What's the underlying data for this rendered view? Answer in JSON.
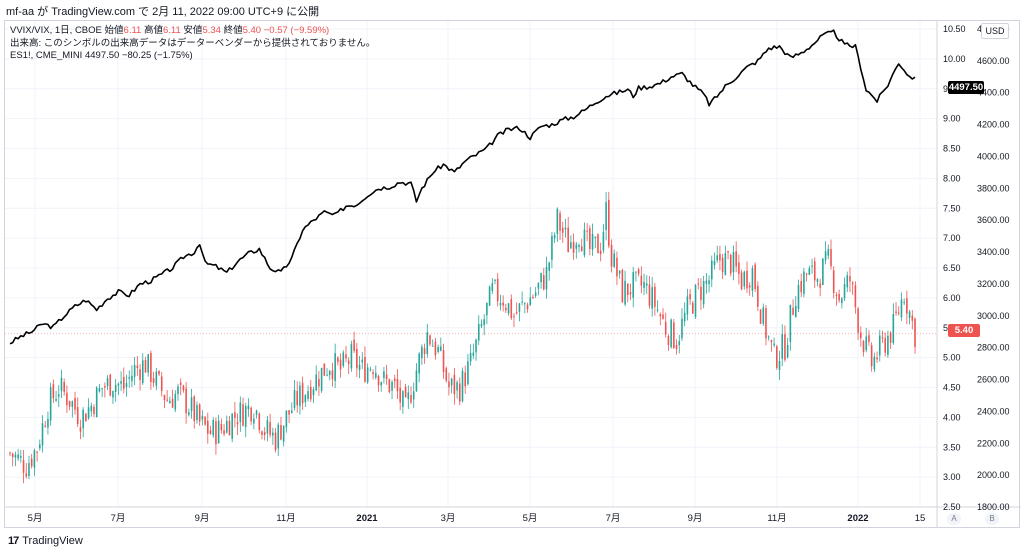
{
  "header": {
    "title": "mf-aa が TradingView.com で 2月 11, 2022 09:00 UTC+9 に公開"
  },
  "legend": {
    "line1_prefix": "VVIX/VIX, 1日, CBOE",
    "open_label": "始値",
    "open_value": "6.11",
    "high_label": "高値",
    "high_value": "6.11",
    "low_label": "安値",
    "low_value": "5.34",
    "close_label": "終値",
    "close_value": "5.40",
    "change": "−0.57 (−9.59%)",
    "line2": "出来高: このシンボルの出来高データはデーターベンダーから提供されておりません。",
    "line3_symbol": "ES1!, CME_MINI",
    "line3_value": "4497.50",
    "line3_change": "−80.25 (−1.75%)"
  },
  "currency_label": "USD",
  "price_tags": {
    "es": "4497.50",
    "ratio": "5.40"
  },
  "axis_buttons": {
    "auto": "A",
    "log": "B"
  },
  "footer": {
    "brand": "TradingView"
  },
  "colors": {
    "up": "#26a69a",
    "down": "#ef5350",
    "line": "#000000",
    "grid": "#f0f3fa"
  },
  "chart_data": {
    "type": "line",
    "title": "VVIX/VIX, 1日, CBOE",
    "x_tick_labels": [
      "5月",
      "7月",
      "9月",
      "11月",
      "2021",
      "3月",
      "5月",
      "7月",
      "9月",
      "11月",
      "2022",
      "15"
    ],
    "y_left_ticks_ratio": [
      "10.50",
      "10.00",
      "9.50",
      "9.00",
      "8.50",
      "8.00",
      "7.50",
      "7.00",
      "6.50",
      "6.00",
      "5.50",
      "5.00",
      "4.50",
      "4.00",
      "3.50",
      "3.00",
      "2.50"
    ],
    "y_right_ticks_es": [
      "4800.00",
      "4600.00",
      "4400.00",
      "4200.00",
      "4000.00",
      "3800.00",
      "3600.00",
      "3400.00",
      "3200.00",
      "3000.00",
      "2800.00",
      "2600.00",
      "2400.00",
      "2200.00",
      "2000.00",
      "1800.00"
    ],
    "series": [
      {
        "name": "ES1!, CME_MINI",
        "kind": "line",
        "points": [
          [
            0,
            2830
          ],
          [
            4,
            2870
          ],
          [
            8,
            2900
          ],
          [
            12,
            2950
          ],
          [
            16,
            2930
          ],
          [
            20,
            3000
          ],
          [
            24,
            3060
          ],
          [
            28,
            3100
          ],
          [
            32,
            3040
          ],
          [
            36,
            3110
          ],
          [
            40,
            3150
          ],
          [
            44,
            3130
          ],
          [
            48,
            3200
          ],
          [
            52,
            3220
          ],
          [
            56,
            3260
          ],
          [
            60,
            3300
          ],
          [
            64,
            3370
          ],
          [
            68,
            3400
          ],
          [
            70,
            3460
          ],
          [
            72,
            3330
          ],
          [
            76,
            3310
          ],
          [
            80,
            3270
          ],
          [
            84,
            3340
          ],
          [
            88,
            3390
          ],
          [
            92,
            3420
          ],
          [
            96,
            3300
          ],
          [
            100,
            3270
          ],
          [
            104,
            3360
          ],
          [
            108,
            3540
          ],
          [
            112,
            3600
          ],
          [
            116,
            3650
          ],
          [
            120,
            3630
          ],
          [
            124,
            3690
          ],
          [
            128,
            3700
          ],
          [
            132,
            3760
          ],
          [
            136,
            3800
          ],
          [
            140,
            3810
          ],
          [
            144,
            3840
          ],
          [
            148,
            3830
          ],
          [
            150,
            3720
          ],
          [
            152,
            3800
          ],
          [
            156,
            3900
          ],
          [
            160,
            3950
          ],
          [
            164,
            3900
          ],
          [
            168,
            3970
          ],
          [
            172,
            4010
          ],
          [
            176,
            4050
          ],
          [
            180,
            4130
          ],
          [
            184,
            4170
          ],
          [
            188,
            4180
          ],
          [
            192,
            4120
          ],
          [
            196,
            4190
          ],
          [
            200,
            4200
          ],
          [
            204,
            4230
          ],
          [
            208,
            4250
          ],
          [
            212,
            4290
          ],
          [
            216,
            4340
          ],
          [
            220,
            4380
          ],
          [
            224,
            4400
          ],
          [
            228,
            4420
          ],
          [
            230,
            4380
          ],
          [
            232,
            4430
          ],
          [
            236,
            4440
          ],
          [
            240,
            4460
          ],
          [
            244,
            4500
          ],
          [
            248,
            4520
          ],
          [
            252,
            4450
          ],
          [
            256,
            4390
          ],
          [
            258,
            4330
          ],
          [
            260,
            4360
          ],
          [
            264,
            4440
          ],
          [
            268,
            4500
          ],
          [
            272,
            4560
          ],
          [
            276,
            4600
          ],
          [
            280,
            4680
          ],
          [
            284,
            4690
          ],
          [
            288,
            4620
          ],
          [
            292,
            4650
          ],
          [
            296,
            4700
          ],
          [
            300,
            4760
          ],
          [
            304,
            4780
          ],
          [
            308,
            4700
          ],
          [
            312,
            4690
          ],
          [
            314,
            4560
          ],
          [
            316,
            4420
          ],
          [
            320,
            4350
          ],
          [
            324,
            4450
          ],
          [
            328,
            4590
          ],
          [
            332,
            4500
          ],
          [
            334,
            4497.5
          ]
        ]
      },
      {
        "name": "VVIX/VIX",
        "kind": "candlestick",
        "note": "daily OHLC estimated from chart",
        "close_segments": [
          [
            0,
            3.4
          ],
          [
            6,
            3.2
          ],
          [
            10,
            3.5
          ],
          [
            14,
            4.2
          ],
          [
            18,
            4.5
          ],
          [
            22,
            4.3
          ],
          [
            26,
            4.0
          ],
          [
            30,
            4.2
          ],
          [
            34,
            4.5
          ],
          [
            38,
            4.6
          ],
          [
            42,
            4.5
          ],
          [
            46,
            4.8
          ],
          [
            50,
            4.9
          ],
          [
            54,
            4.6
          ],
          [
            58,
            4.3
          ],
          [
            62,
            4.4
          ],
          [
            66,
            4.2
          ],
          [
            70,
            3.9
          ],
          [
            74,
            3.75
          ],
          [
            78,
            3.8
          ],
          [
            82,
            4.0
          ],
          [
            86,
            4.1
          ],
          [
            90,
            4.2
          ],
          [
            94,
            3.8
          ],
          [
            98,
            3.65
          ],
          [
            102,
            4.0
          ],
          [
            106,
            4.3
          ],
          [
            110,
            4.5
          ],
          [
            114,
            4.7
          ],
          [
            118,
            4.9
          ],
          [
            122,
            4.8
          ],
          [
            126,
            5.0
          ],
          [
            130,
            4.8
          ],
          [
            134,
            4.9
          ],
          [
            138,
            4.6
          ],
          [
            142,
            4.5
          ],
          [
            146,
            4.1
          ],
          [
            150,
            4.8
          ],
          [
            154,
            5.4
          ],
          [
            158,
            5.1
          ],
          [
            162,
            4.5
          ],
          [
            166,
            4.5
          ],
          [
            170,
            4.9
          ],
          [
            174,
            5.5
          ],
          [
            178,
            6.1
          ],
          [
            182,
            6.0
          ],
          [
            186,
            5.7
          ],
          [
            190,
            5.9
          ],
          [
            194,
            6.1
          ],
          [
            198,
            6.4
          ],
          [
            202,
            7.3
          ],
          [
            206,
            6.9
          ],
          [
            210,
            7.1
          ],
          [
            214,
            6.8
          ],
          [
            218,
            6.9
          ],
          [
            220,
            7.45
          ],
          [
            222,
            6.7
          ],
          [
            226,
            6.1
          ],
          [
            230,
            6.2
          ],
          [
            234,
            6.2
          ],
          [
            238,
            5.9
          ],
          [
            242,
            5.5
          ],
          [
            246,
            5.3
          ],
          [
            250,
            5.8
          ],
          [
            254,
            6.1
          ],
          [
            258,
            6.3
          ],
          [
            262,
            6.65
          ],
          [
            266,
            6.6
          ],
          [
            270,
            6.3
          ],
          [
            274,
            6.45
          ],
          [
            278,
            5.6
          ],
          [
            282,
            5.0
          ],
          [
            286,
            5.2
          ],
          [
            290,
            6.1
          ],
          [
            294,
            6.4
          ],
          [
            298,
            6.35
          ],
          [
            302,
            6.6
          ],
          [
            306,
            6.0
          ],
          [
            310,
            6.3
          ],
          [
            314,
            5.4
          ],
          [
            318,
            4.9
          ],
          [
            322,
            5.2
          ],
          [
            326,
            5.5
          ],
          [
            330,
            6.1
          ],
          [
            334,
            5.4
          ]
        ]
      }
    ],
    "last_values": {
      "ES1!": 4497.5,
      "VVIX/VIX": 5.4
    },
    "ylim_ratio": [
      2.5,
      10.5
    ],
    "ylim_es": [
      1800,
      4800
    ],
    "grid": true,
    "legend_position": "top-left"
  }
}
